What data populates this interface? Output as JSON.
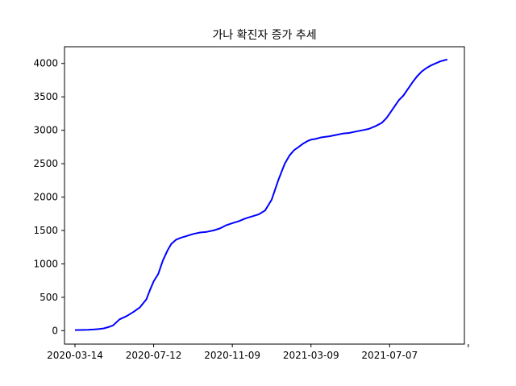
{
  "chart_data": {
    "type": "line",
    "title": "가나 확진자 증가 추세",
    "xlabel": "",
    "ylabel": "",
    "grid": false,
    "xlim": [
      "2020-02-27",
      "2021-10-29"
    ],
    "ylim": [
      -200,
      4250
    ],
    "x_ticks": [
      "2020-03-14",
      "2020-07-12",
      "2020-11-09",
      "2021-03-09",
      "2021-07-07",
      "2021-11-04"
    ],
    "x_tick_labels": [
      "2020-03-14",
      "2020-07-12",
      "2020-11-09",
      "2021-03-09",
      "2021-07-07",
      ""
    ],
    "y_ticks": [
      0,
      500,
      1000,
      1500,
      2000,
      2500,
      3000,
      3500,
      4000
    ],
    "y_tick_labels": [
      "0",
      "500",
      "1000",
      "1500",
      "2000",
      "2500",
      "3000",
      "3500",
      "4000"
    ],
    "series": [
      {
        "color": "#0000ff",
        "x": [
          "2020-03-14",
          "2020-04-03",
          "2020-04-13",
          "2020-04-20",
          "2020-04-27",
          "2020-05-04",
          "2020-05-11",
          "2020-05-21",
          "2020-06-01",
          "2020-06-11",
          "2020-06-21",
          "2020-07-01",
          "2020-07-06",
          "2020-07-12",
          "2020-07-19",
          "2020-07-26",
          "2020-08-02",
          "2020-08-08",
          "2020-08-15",
          "2020-08-22",
          "2020-09-01",
          "2020-09-11",
          "2020-09-21",
          "2020-10-01",
          "2020-10-11",
          "2020-10-21",
          "2020-10-31",
          "2020-11-09",
          "2020-11-19",
          "2020-11-29",
          "2020-12-09",
          "2020-12-19",
          "2020-12-29",
          "2021-01-08",
          "2021-01-18",
          "2021-01-28",
          "2021-02-04",
          "2021-02-11",
          "2021-02-18",
          "2021-02-25",
          "2021-03-04",
          "2021-03-09",
          "2021-03-16",
          "2021-03-23",
          "2021-03-30",
          "2021-04-06",
          "2021-04-16",
          "2021-04-26",
          "2021-05-06",
          "2021-05-16",
          "2021-05-26",
          "2021-06-05",
          "2021-06-15",
          "2021-06-25",
          "2021-07-02",
          "2021-07-07",
          "2021-07-14",
          "2021-07-21",
          "2021-07-28",
          "2021-08-04",
          "2021-08-11",
          "2021-08-18",
          "2021-08-25",
          "2021-09-01",
          "2021-09-08",
          "2021-09-15",
          "2021-09-22",
          "2021-09-29",
          "2021-10-03"
        ],
        "y": [
          10,
          15,
          20,
          25,
          35,
          55,
          80,
          170,
          220,
          280,
          350,
          470,
          600,
          740,
          850,
          1050,
          1200,
          1300,
          1360,
          1390,
          1420,
          1450,
          1470,
          1480,
          1500,
          1530,
          1580,
          1610,
          1640,
          1680,
          1710,
          1740,
          1800,
          1960,
          2250,
          2500,
          2620,
          2700,
          2750,
          2800,
          2840,
          2860,
          2870,
          2890,
          2900,
          2910,
          2930,
          2950,
          2960,
          2980,
          3000,
          3020,
          3060,
          3110,
          3180,
          3250,
          3350,
          3450,
          3520,
          3620,
          3720,
          3810,
          3880,
          3930,
          3970,
          4000,
          4030,
          4050,
          4060
        ]
      }
    ]
  }
}
